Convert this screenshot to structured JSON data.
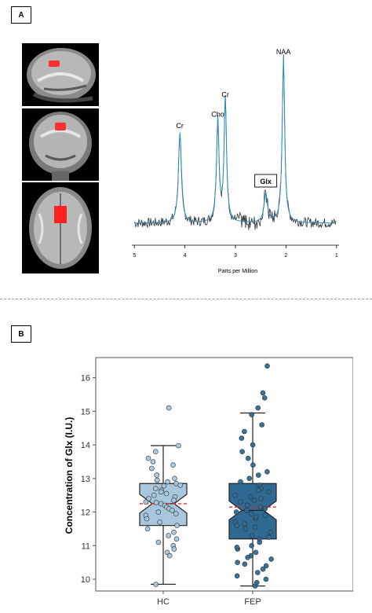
{
  "panel_a": {
    "label": "A"
  },
  "panel_b": {
    "label": "B"
  },
  "chart_data": [
    {
      "type": "line",
      "xlabel": "Parts per Million",
      "x_ticks": [
        5,
        4,
        3,
        2,
        1
      ],
      "xlim": [
        5.05,
        0.95
      ],
      "x_reversed": true,
      "series": [
        {
          "values": []
        },
        {
          "values": []
        }
      ],
      "peaks": [
        {
          "label": "Cr",
          "ppm": 4.1,
          "height": 0.55
        },
        {
          "label": "Cho",
          "ppm": 3.35,
          "height": 0.62
        },
        {
          "label": "Cr",
          "ppm": 3.2,
          "height": 0.74
        },
        {
          "label": "Glx",
          "ppm": 2.4,
          "height": 0.18,
          "boxed": true
        },
        {
          "label": "NAA",
          "ppm": 2.05,
          "height": 1.0
        }
      ]
    },
    {
      "type": "box",
      "ylabel": "Concentration of Glx (I.U.)",
      "ylim": [
        9.65,
        16.6
      ],
      "y_ticks": [
        10,
        11,
        12,
        13,
        14,
        15,
        16
      ],
      "categories": [
        "HC",
        "FEP"
      ],
      "colors": {
        "HC": "#a8c6dc",
        "FEP": "#2f6a94",
        "mean_line": "#e0302c"
      },
      "boxes": [
        {
          "name": "HC",
          "whisker_low": 9.85,
          "q1": 11.6,
          "median": 12.25,
          "q3": 12.85,
          "whisker_high": 13.98,
          "mean": 12.25,
          "points": [
            15.1,
            13.98,
            13.8,
            13.6,
            13.5,
            13.4,
            13.3,
            13.1,
            13.0,
            12.95,
            12.9,
            12.85,
            12.8,
            12.78,
            12.7,
            12.65,
            12.6,
            12.55,
            12.5,
            12.45,
            12.4,
            12.35,
            12.3,
            12.28,
            12.25,
            12.2,
            12.15,
            12.1,
            12.05,
            12.0,
            11.95,
            11.9,
            11.8,
            11.7,
            11.6,
            11.5,
            11.4,
            11.3,
            11.2,
            11.1,
            11.0,
            10.9,
            10.8,
            10.7,
            9.85
          ]
        },
        {
          "name": "FEP",
          "whisker_low": 9.8,
          "q1": 11.2,
          "median": 12.05,
          "q3": 12.85,
          "whisker_high": 14.95,
          "mean": 12.15,
          "points": [
            16.35,
            15.55,
            15.4,
            15.1,
            14.9,
            14.6,
            14.4,
            14.2,
            14.0,
            13.8,
            13.6,
            13.4,
            13.2,
            13.0,
            12.9,
            12.8,
            12.7,
            12.6,
            12.5,
            12.4,
            12.3,
            12.2,
            12.1,
            12.05,
            12.0,
            11.95,
            11.9,
            11.8,
            11.7,
            11.6,
            11.5,
            11.4,
            11.3,
            11.2,
            11.1,
            11.0,
            10.9,
            10.8,
            10.7,
            10.6,
            10.5,
            10.4,
            10.3,
            10.2,
            10.1,
            10.0,
            9.9,
            9.8,
            12.65,
            12.45,
            12.15,
            11.85,
            11.55,
            11.25,
            10.95,
            10.65,
            13.1,
            12.35,
            11.65,
            10.45
          ]
        }
      ]
    }
  ]
}
